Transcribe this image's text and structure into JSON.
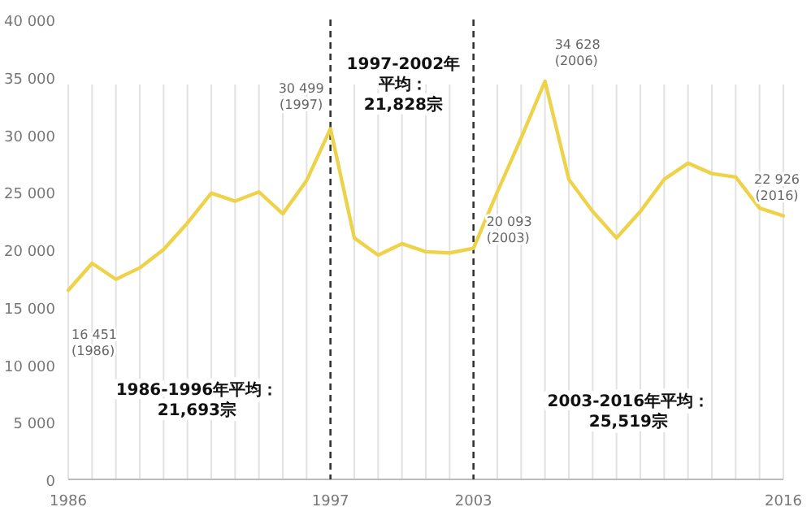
{
  "chart_data": {
    "type": "line",
    "x": [
      1986,
      1987,
      1988,
      1989,
      1990,
      1991,
      1992,
      1993,
      1994,
      1995,
      1996,
      1997,
      1998,
      1999,
      2000,
      2001,
      2002,
      2003,
      2004,
      2005,
      2006,
      2007,
      2008,
      2009,
      2010,
      2011,
      2012,
      2013,
      2014,
      2015,
      2016
    ],
    "series": [
      {
        "color": "#eed24a",
        "values": [
          16451,
          18800,
          17400,
          18400,
          20000,
          22300,
          24900,
          24200,
          25000,
          23100,
          26000,
          30499,
          21000,
          19500,
          20500,
          19800,
          19700,
          20093,
          25000,
          29700,
          34628,
          26100,
          23300,
          21000,
          23300,
          26100,
          27500,
          26600,
          26300,
          23600,
          22926
        ],
        "value_labels": [
          "16 451\n(1986)",
          null,
          null,
          null,
          null,
          null,
          null,
          null,
          null,
          null,
          null,
          "30 499\n(1997)",
          null,
          null,
          null,
          null,
          null,
          "20 093\n(2003)",
          null,
          null,
          "34 628\n(2006)",
          null,
          null,
          null,
          null,
          null,
          null,
          null,
          null,
          null,
          "22 926\n(2016)"
        ]
      }
    ],
    "xlim": [
      1986,
      2016
    ],
    "xticks": [
      1986,
      1997,
      2003,
      2016
    ],
    "ylim": [
      0,
      40000
    ],
    "yticks": [
      0,
      {
        "value": 5000,
        "label": "5 000"
      },
      {
        "value": 10000,
        "label": "10 000"
      },
      {
        "value": 15000,
        "label": "15 000"
      },
      {
        "value": 20000,
        "label": "20 000"
      },
      {
        "value": 25000,
        "label": "25 000"
      },
      {
        "value": 30000,
        "label": "30 000"
      },
      {
        "value": 35000,
        "label": "35 000"
      },
      {
        "value": 40000,
        "label": "40 000"
      }
    ],
    "grid": "x",
    "marker": "none",
    "line_style": "solid",
    "ref_lines": [
      {
        "axis": "x",
        "value": 1997,
        "line_style": "dashed",
        "color": "#333333"
      },
      {
        "axis": "x",
        "value": 2003,
        "line_style": "dashed",
        "color": "#333333"
      }
    ],
    "annotations": [
      "1986-1996年平均：21,693宗",
      "1997-2002年平均：21,828宗",
      "2003-2016年平均：25,519宗"
    ]
  }
}
